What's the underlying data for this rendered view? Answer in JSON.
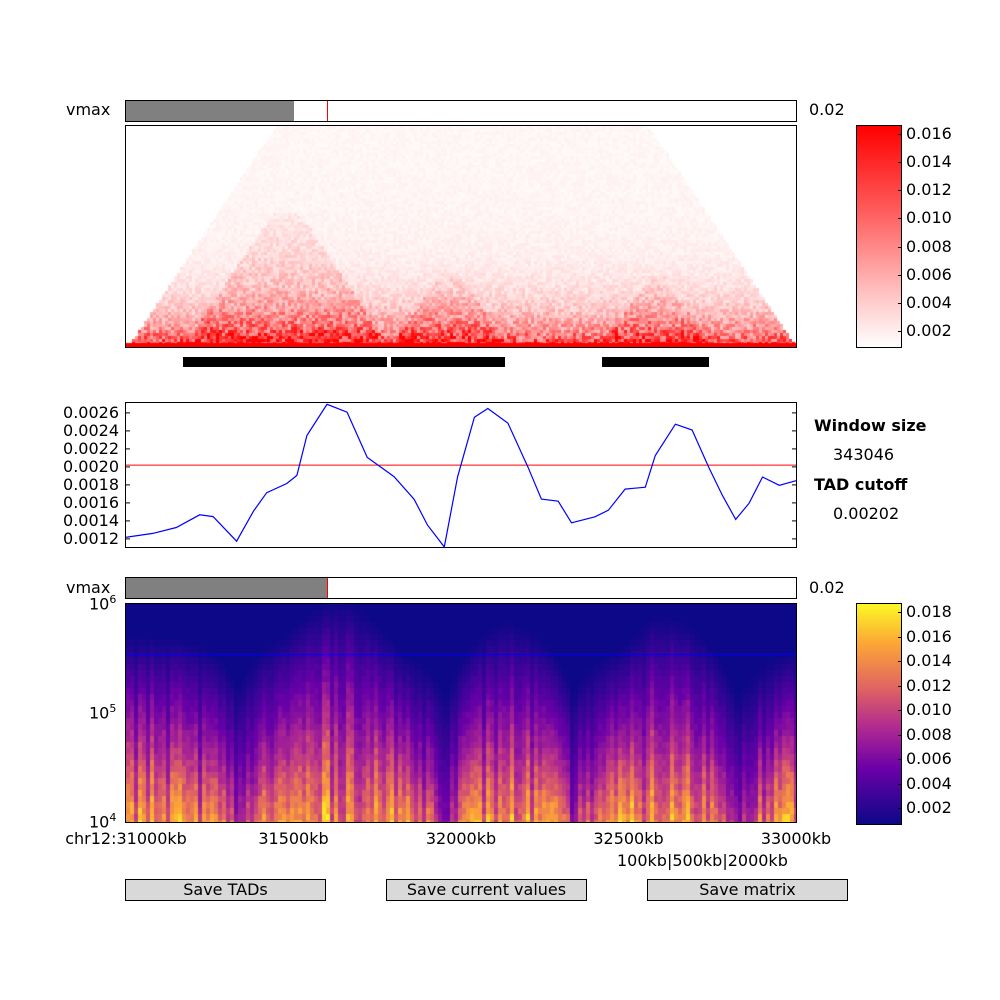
{
  "top_slider": {
    "label": "vmax",
    "value_label": "0.02",
    "fill_fraction": 0.25,
    "marker_fraction": 0.3
  },
  "heatmap_colorbar": {
    "ticks": [
      "0.016",
      "0.014",
      "0.012",
      "0.010",
      "0.008",
      "0.006",
      "0.004",
      "0.002"
    ]
  },
  "tad_segments_kb": [
    [
      31170,
      31780
    ],
    [
      31790,
      32130
    ],
    [
      32420,
      32740
    ]
  ],
  "insulation_plot": {
    "yticks": [
      "0.0026",
      "0.0024",
      "0.0022",
      "0.0020",
      "0.0018",
      "0.0016",
      "0.0014",
      "0.0012"
    ],
    "ylim": [
      0.00111,
      0.00271
    ],
    "cutoff": 0.00202,
    "line_color": "#0000ff",
    "cutoff_color": "#ff0000"
  },
  "side_panel": {
    "window_size_title": "Window size",
    "window_size_value": "343046",
    "tad_cutoff_title": "TAD cutoff",
    "tad_cutoff_value": "0.00202"
  },
  "bottom_slider": {
    "label": "vmax",
    "value_label": "0.02",
    "fill_fraction": 0.3,
    "marker_fraction": 0.3
  },
  "spectrum": {
    "ytick_base": "10",
    "yticks": [
      {
        "exp": "6",
        "value": 1000000
      },
      {
        "exp": "5",
        "value": 100000
      },
      {
        "exp": "4",
        "value": 10000
      }
    ],
    "window_line_value": 343046
  },
  "spectrum_colorbar": {
    "ticks": [
      "0.018",
      "0.016",
      "0.014",
      "0.012",
      "0.010",
      "0.008",
      "0.006",
      "0.004",
      "0.002"
    ]
  },
  "x_axis": {
    "ticks": [
      "chr12:31000kb",
      "31500kb",
      "32000kb",
      "32500kb",
      "33000kb"
    ],
    "scale_label": "100kb|500kb|2000kb"
  },
  "buttons": {
    "save_tads": "Save TADs",
    "save_current_values": "Save current values",
    "save_matrix": "Save matrix"
  },
  "colors": {
    "heat_red": "#ff0000",
    "insulation_blue": "#0000ff",
    "button_bg": "#d9d9d9",
    "slider_fill": "#808080"
  }
}
